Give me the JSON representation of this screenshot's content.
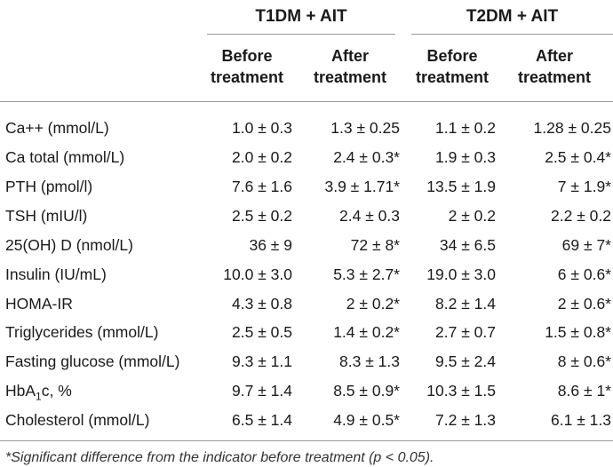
{
  "table": {
    "groups": [
      {
        "title": "T1DM + AIT"
      },
      {
        "title": "T2DM + AIT"
      }
    ],
    "sub_headers": [
      {
        "line1": "Before",
        "line2": "treatment"
      },
      {
        "line1": "After",
        "line2": "treatment"
      },
      {
        "line1": "Before",
        "line2": "treatment"
      },
      {
        "line1": "After",
        "line2": "treatment"
      }
    ],
    "rows": [
      {
        "label": "Ca++ (mmol/L)",
        "values": [
          "1.0 ± 0.3",
          "1.3 ± 0.25",
          "1.1 ± 0.2",
          "1.28 ± 0.25"
        ]
      },
      {
        "label": "Ca total (mmol/L)",
        "values": [
          "2.0 ± 0.2",
          "2.4 ± 0.3*",
          "1.9 ± 0.3",
          "2.5 ± 0.4*"
        ]
      },
      {
        "label": "PTH (pmol/l)",
        "values": [
          "7.6 ± 1.6",
          "3.9 ± 1.71*",
          "13.5 ± 1.9",
          "7 ± 1.9*"
        ]
      },
      {
        "label": "TSH (mIU/l)",
        "values": [
          "2.5 ± 0.2",
          "2.4 ± 0.3",
          "2 ± 0.2",
          "2.2 ± 0.2"
        ]
      },
      {
        "label": "25(OH) D (nmol/L)",
        "values": [
          "36 ± 9",
          "72 ± 8*",
          "34 ± 6.5",
          "69 ± 7*"
        ]
      },
      {
        "label": "Insulin (IU/mL)",
        "values": [
          "10.0 ± 3.0",
          "5.3 ± 2.7*",
          "19.0 ± 3.0",
          "6 ± 0.6*"
        ]
      },
      {
        "label": "HOMA-IR",
        "values": [
          "4.3 ± 0.8",
          "2 ± 0.2*",
          "8.2 ± 1.4",
          "2 ± 0.6*"
        ]
      },
      {
        "label": "Triglycerides (mmol/L)",
        "values": [
          "2.5 ± 0.5",
          "1.4 ± 0.2*",
          "2.7 ± 0.7",
          "1.5 ± 0.8*"
        ]
      },
      {
        "label": "Fasting glucose (mmol/L)",
        "values": [
          "9.3 ± 1.1",
          "8.3 ± 1.3",
          "9.5 ± 2.4",
          "8 ± 0.6*"
        ]
      },
      {
        "label_prefix": "HbA",
        "label_sub": "1",
        "label_suffix": "c, %",
        "values": [
          "9.7 ± 1.4",
          "8.5 ± 0.9*",
          "10.3 ± 1.5",
          "8.6 ± 1*"
        ]
      },
      {
        "label": "Cholesterol (mmol/L)",
        "values": [
          "6.5 ± 1.4",
          "4.9 ± 0.5*",
          "7.2 ± 1.3",
          "6.1 ± 1.3"
        ]
      }
    ],
    "footnote": "*Significant difference from the indicator before treatment (p < 0.05)."
  }
}
